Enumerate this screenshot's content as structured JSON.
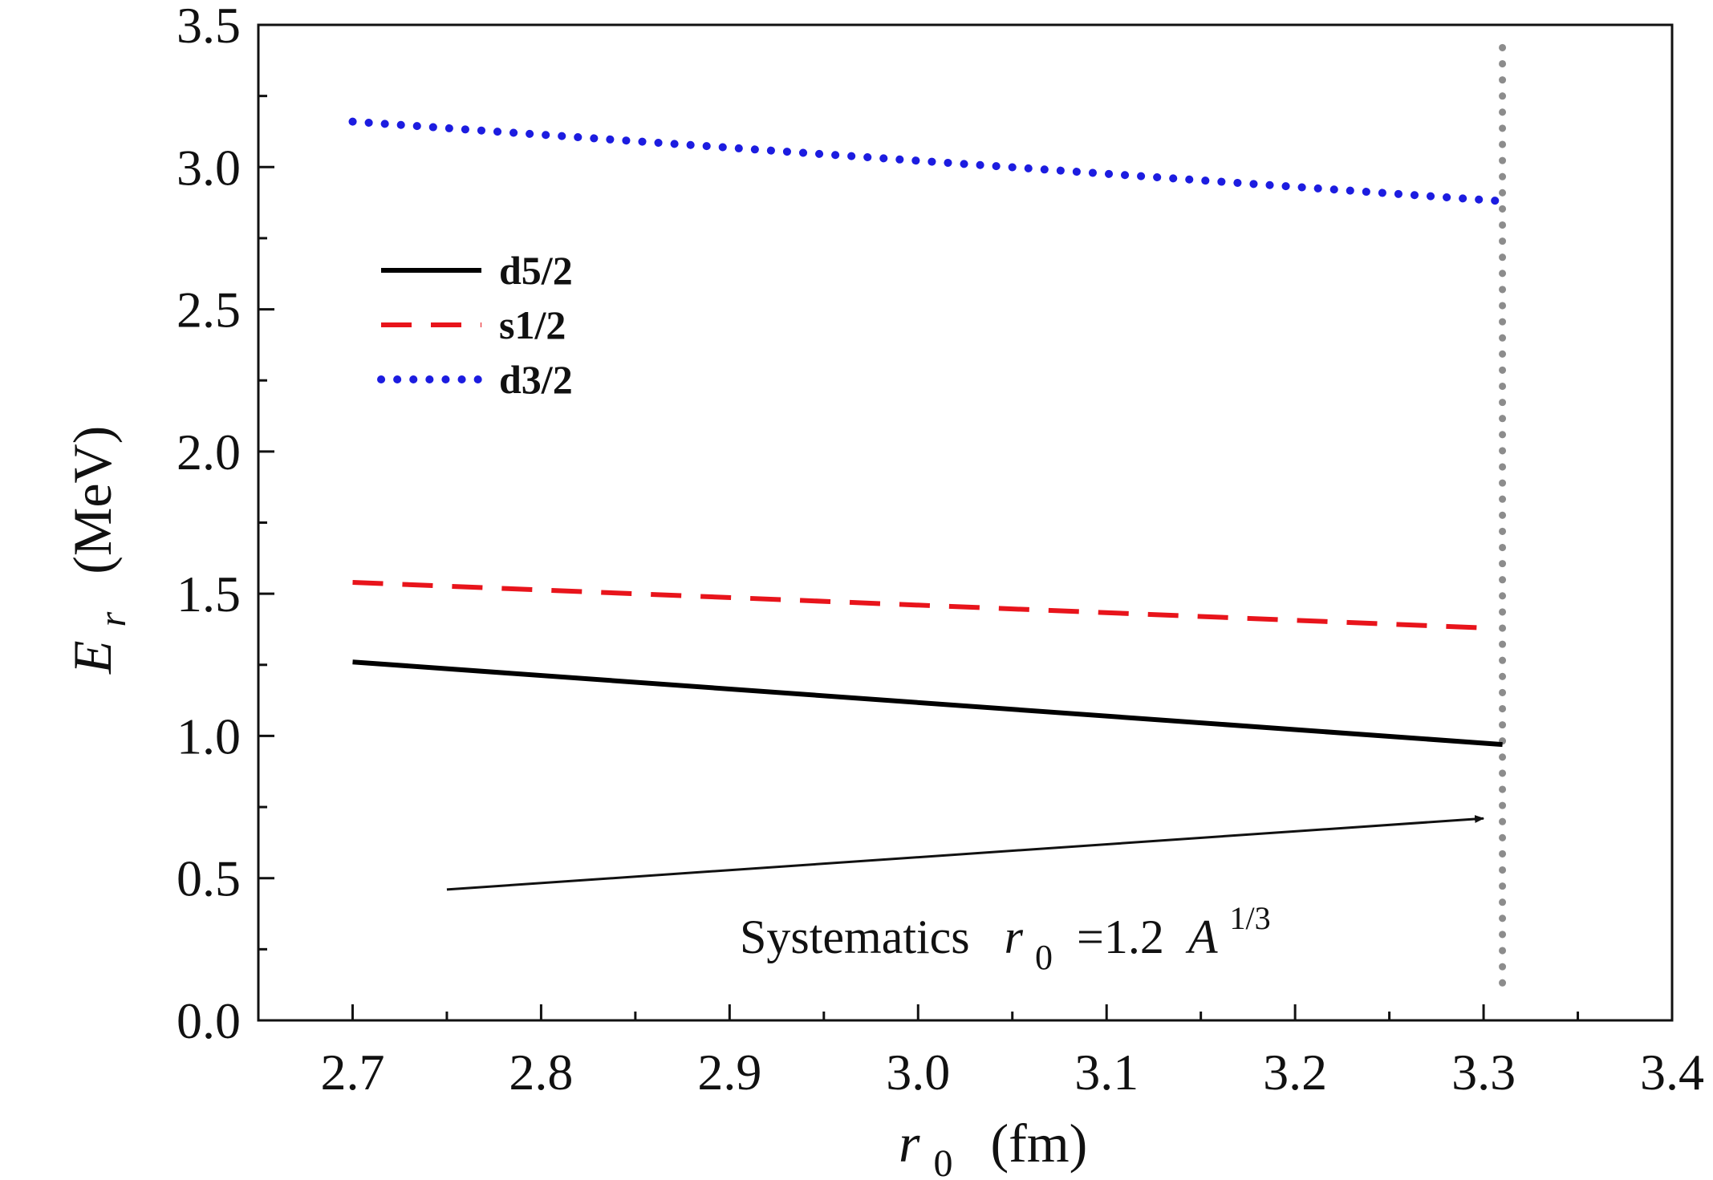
{
  "chart_data": {
    "type": "line",
    "title": "",
    "xlabel": {
      "symbol": "r",
      "subscript": "0",
      "unit": "(fm)"
    },
    "ylabel": {
      "symbol": "E",
      "subscript": "r",
      "unit": "(MeV)"
    },
    "xlim": [
      2.65,
      3.4
    ],
    "ylim": [
      0.0,
      3.5
    ],
    "xticks": [
      2.7,
      2.8,
      2.9,
      3.0,
      3.1,
      3.2,
      3.3,
      3.4
    ],
    "xtick_labels": [
      "2.7",
      "2.8",
      "2.9",
      "3.0",
      "3.1",
      "3.2",
      "3.3",
      "3.4"
    ],
    "yticks": [
      0.0,
      0.5,
      1.0,
      1.5,
      2.0,
      2.5,
      3.0,
      3.5
    ],
    "ytick_labels": [
      "0.0",
      "0.5",
      "1.0",
      "1.5",
      "2.0",
      "2.5",
      "3.0",
      "3.5"
    ],
    "grid": false,
    "legend_position": "upper-left",
    "series": [
      {
        "name": "d5/2",
        "color": "#000000",
        "style": "solid",
        "x": [
          2.7,
          3.31
        ],
        "y": [
          1.26,
          0.97
        ]
      },
      {
        "name": "s1/2",
        "color": "#e8141b",
        "style": "dashed",
        "x": [
          2.7,
          3.3
        ],
        "y": [
          1.54,
          1.38
        ]
      },
      {
        "name": "d3/2",
        "color": "#1c1ce0",
        "style": "dotted",
        "x": [
          2.7,
          3.31
        ],
        "y": [
          3.16,
          2.88
        ]
      }
    ],
    "reference_line": {
      "x": 3.31,
      "color": "#8c8c8c",
      "style": "dotted"
    },
    "annotation": {
      "text": "Systematics",
      "symbol": "r",
      "subscript": "0",
      "equals": " =1.2 ",
      "mass_symbol": "A",
      "exponent": "1/3",
      "arrow_from": [
        2.75,
        0.46
      ],
      "arrow_to": [
        3.3,
        0.71
      ]
    }
  }
}
